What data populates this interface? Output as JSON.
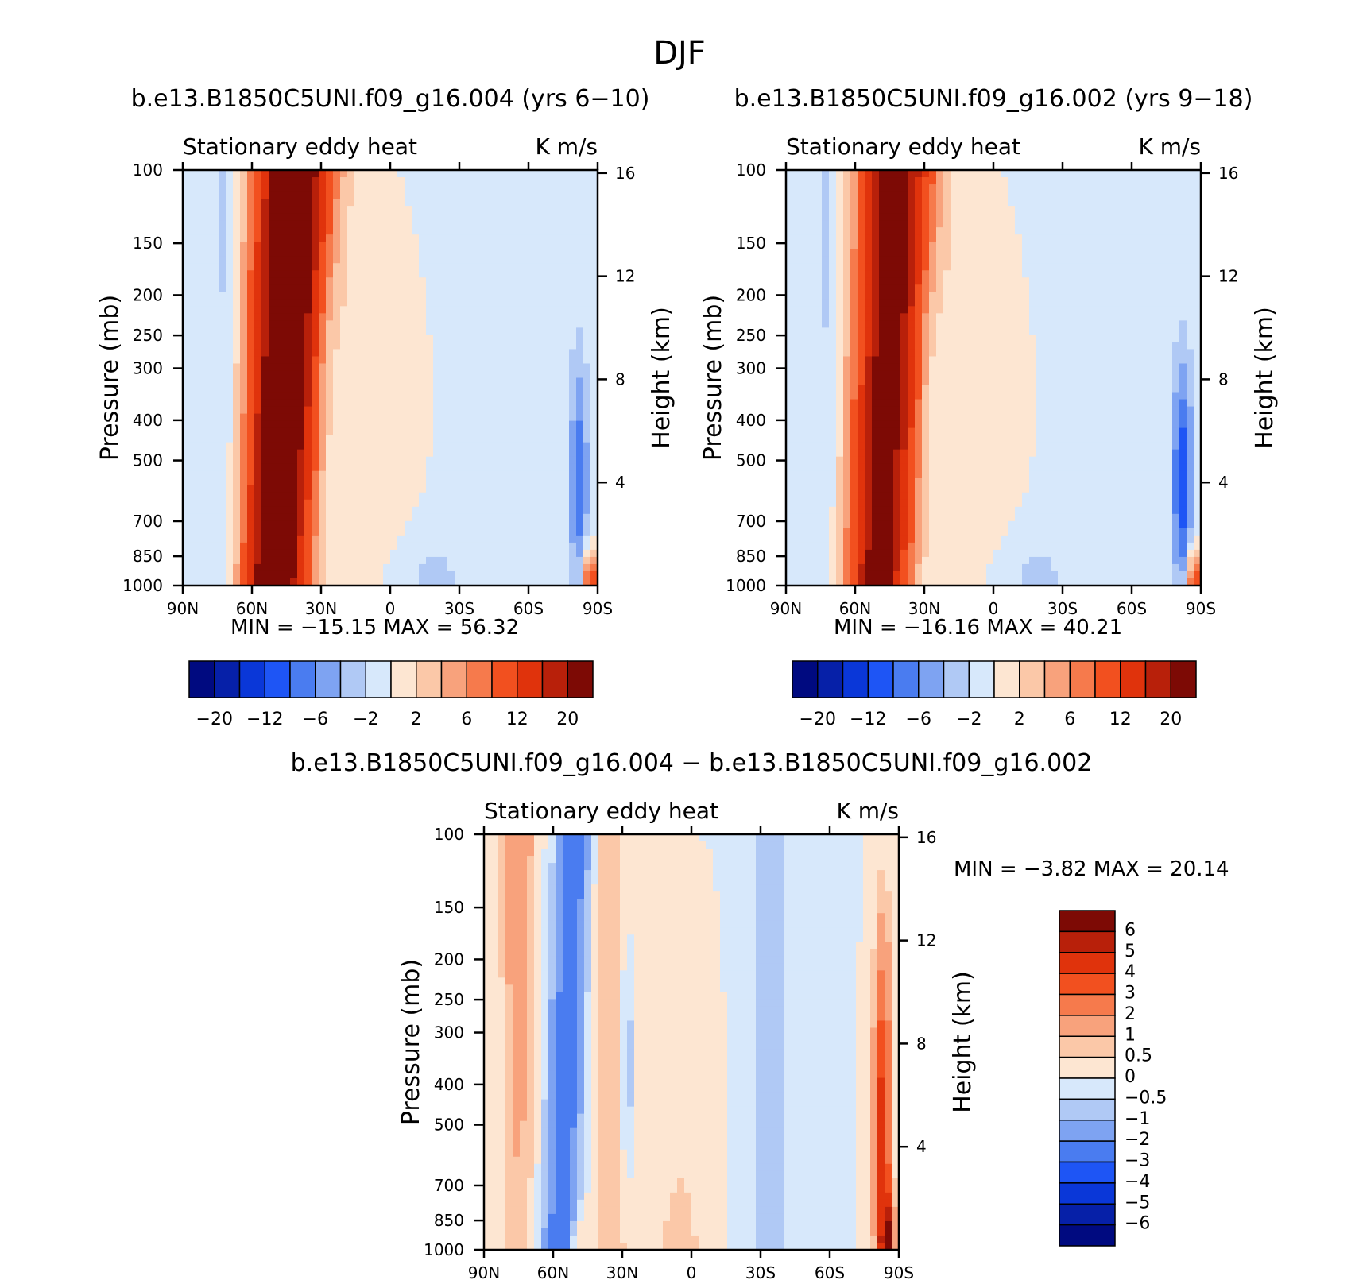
{
  "figure_title": "DJF",
  "chart_data": [
    {
      "type": "heatmap",
      "id": "panel1",
      "title": "b.e13.B1850C5UNI.f09_g16.004 (yrs 6−10)",
      "variable": "Stationary eddy heat",
      "units": "K m/s",
      "ylabel": "Pressure (mb)",
      "ylabel_right": "Height (km)",
      "x_ticks": [
        "90N",
        "60N",
        "30N",
        "0",
        "30S",
        "60S",
        "90S"
      ],
      "y_ticks": [
        "100",
        "150",
        "200",
        "250",
        "300",
        "400",
        "500",
        "700",
        "850",
        "1000"
      ],
      "y_ticks_right": [
        "16",
        "12",
        "8",
        "4"
      ],
      "min_label": "MIN =",
      "min_value": "−15.15",
      "max_label": "MAX =",
      "max_value": "56.32",
      "colorbar_labels": [
        "−20",
        "−12",
        "−6",
        "−2",
        "2",
        "6",
        "12",
        "20"
      ],
      "band_peak": 30,
      "south_pocket": -7
    },
    {
      "type": "heatmap",
      "id": "panel2",
      "title": "b.e13.B1850C5UNI.f09_g16.002 (yrs 9−18)",
      "variable": "Stationary eddy heat",
      "units": "K m/s",
      "ylabel": "Pressure (mb)",
      "ylabel_right": "Height (km)",
      "x_ticks": [
        "90N",
        "60N",
        "30N",
        "0",
        "30S",
        "60S",
        "90S"
      ],
      "y_ticks": [
        "100",
        "150",
        "200",
        "250",
        "300",
        "400",
        "500",
        "700",
        "850",
        "1000"
      ],
      "y_ticks_right": [
        "16",
        "12",
        "8",
        "4"
      ],
      "min_label": "MIN =",
      "min_value": "−16.16",
      "max_label": "MAX =",
      "max_value": "40.21",
      "colorbar_labels": [
        "−20",
        "−12",
        "−6",
        "−2",
        "2",
        "6",
        "12",
        "20"
      ],
      "band_peak": 24,
      "south_pocket": -9
    },
    {
      "type": "heatmap",
      "id": "panel3",
      "title": "b.e13.B1850C5UNI.f09_g16.004 − b.e13.B1850C5UNI.f09_g16.002",
      "variable": "Stationary eddy heat",
      "units": "K m/s",
      "ylabel": "Pressure (mb)",
      "ylabel_right": "Height (km)",
      "x_ticks": [
        "90N",
        "60N",
        "30N",
        "0",
        "30S",
        "60S",
        "90S"
      ],
      "y_ticks": [
        "100",
        "150",
        "200",
        "250",
        "300",
        "400",
        "500",
        "700",
        "850",
        "1000"
      ],
      "y_ticks_right": [
        "16",
        "12",
        "8",
        "4"
      ],
      "min_label": "MIN =",
      "min_value": "−3.82",
      "max_label": "MAX =",
      "max_value": "20.14",
      "colorbar_labels": [
        "6",
        "5",
        "4",
        "3",
        "2",
        "1",
        "0.5",
        "0",
        "−0.5",
        "−1",
        "−2",
        "−3",
        "−4",
        "−5",
        "−6"
      ]
    }
  ],
  "colorbars": {
    "levels_main": [
      -20,
      -16,
      -12,
      -8,
      -6,
      -4,
      -2,
      0,
      2,
      4,
      6,
      8,
      12,
      16,
      20
    ],
    "levels_diff": [
      -6,
      -5,
      -4,
      -3,
      -2,
      -1,
      -0.5,
      0,
      0.5,
      1,
      2,
      3,
      4,
      5,
      6
    ],
    "colors": [
      "#000a80",
      "#0620a8",
      "#0a37d8",
      "#1e55f5",
      "#4a7cf0",
      "#7ea3f2",
      "#b0c9f5",
      "#d7e8fb",
      "#fde6d2",
      "#fbc8a8",
      "#f8a27c",
      "#f67a4c",
      "#f2501f",
      "#e0330c",
      "#b8200a",
      "#7d0a05"
    ]
  }
}
